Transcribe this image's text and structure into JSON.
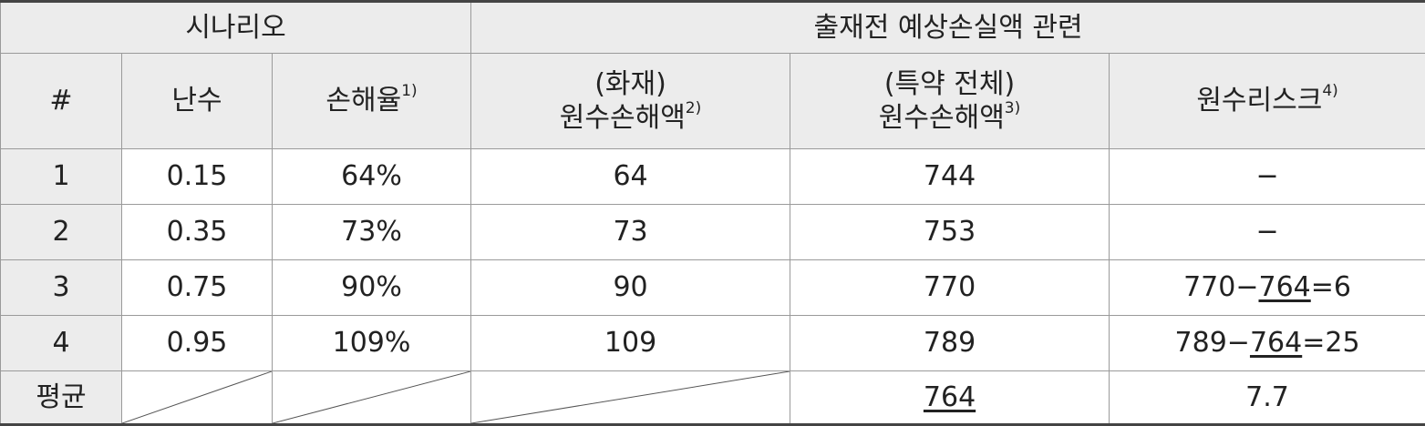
{
  "header": {
    "group_scenario": "시나리오",
    "group_loss": "출재전 예상손실액 관련",
    "col_index": "#",
    "col_random": "난수",
    "col_loss_ratio": "손해율",
    "col_loss_ratio_note": "1)",
    "col_fire_line1": "(화재)",
    "col_fire_line2": "원수손해액",
    "col_fire_note": "2)",
    "col_total_line1": "(특약 전체)",
    "col_total_line2": "원수손해액",
    "col_total_note": "3)",
    "col_risk": "원수리스크",
    "col_risk_note": "4)"
  },
  "rows": [
    {
      "index": "1",
      "random": "0.15",
      "loss_ratio": "64%",
      "fire": "64",
      "total": "744",
      "risk": "−"
    },
    {
      "index": "2",
      "random": "0.35",
      "loss_ratio": "73%",
      "fire": "73",
      "total": "753",
      "risk": "−"
    },
    {
      "index": "3",
      "random": "0.75",
      "loss_ratio": "90%",
      "fire": "90",
      "total": "770",
      "risk_a": "770−",
      "risk_b": "764",
      "risk_c": "=6"
    },
    {
      "index": "4",
      "random": "0.95",
      "loss_ratio": "109%",
      "fire": "109",
      "total": "789",
      "risk_a": "789−",
      "risk_b": "764",
      "risk_c": "=25"
    }
  ],
  "average": {
    "label": "평균",
    "total": "764",
    "risk": "7.7"
  }
}
